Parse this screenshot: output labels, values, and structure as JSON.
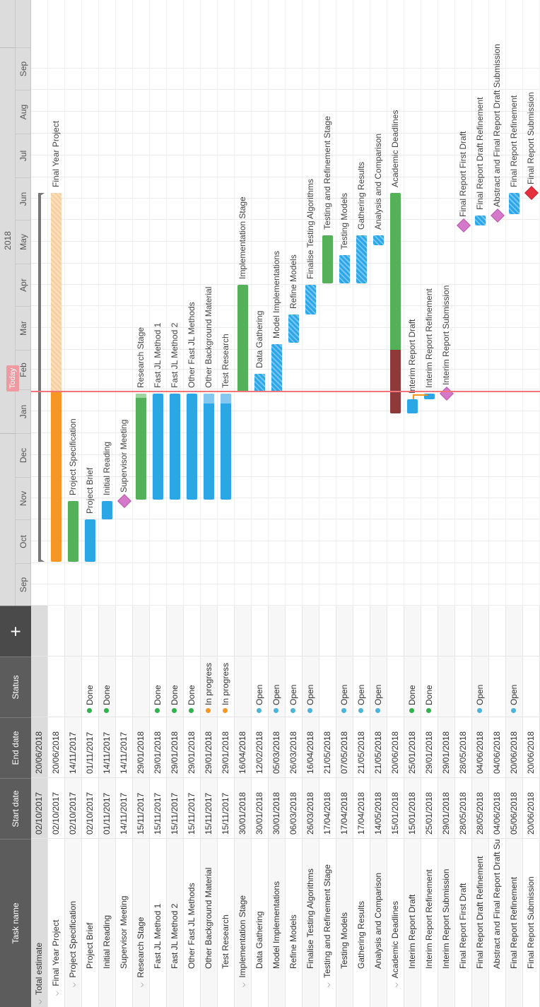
{
  "grid": {
    "headers": {
      "name": "Task name",
      "start": "Start date",
      "end": "End date",
      "status": "Status",
      "add": "+"
    },
    "rows": [
      {
        "name": "Total estimate",
        "start": "02/10/2017",
        "end": "20/06/2018",
        "status": "",
        "status_color": "",
        "level": 0,
        "expanded": true
      },
      {
        "name": "Final Year Project",
        "start": "02/10/2017",
        "end": "20/06/2018",
        "status": "",
        "status_color": "",
        "level": 1,
        "expanded": true
      },
      {
        "name": "Project Specification",
        "start": "02/10/2017",
        "end": "14/11/2017",
        "status": "",
        "status_color": "",
        "level": 2,
        "expanded": true
      },
      {
        "name": "Project Brief",
        "start": "02/10/2017",
        "end": "01/11/2017",
        "status": "Done",
        "status_color": "#2fb24a",
        "level": 3
      },
      {
        "name": "Initial Reading",
        "start": "01/11/2017",
        "end": "14/11/2017",
        "status": "Done",
        "status_color": "#2fb24a",
        "level": 3
      },
      {
        "name": "Supervisor Meeting",
        "start": "14/11/2017",
        "end": "14/11/2017",
        "status": "",
        "status_color": "",
        "level": 3
      },
      {
        "name": "Research Stage",
        "start": "15/11/2017",
        "end": "29/01/2018",
        "status": "",
        "status_color": "",
        "level": 2,
        "expanded": true
      },
      {
        "name": "Fast JL Method 1",
        "start": "15/11/2017",
        "end": "29/01/2018",
        "status": "Done",
        "status_color": "#2fb24a",
        "level": 3
      },
      {
        "name": "Fast JL Method 2",
        "start": "15/11/2017",
        "end": "29/01/2018",
        "status": "Done",
        "status_color": "#2fb24a",
        "level": 3
      },
      {
        "name": "Other Fast JL Methods",
        "start": "15/11/2017",
        "end": "29/01/2018",
        "status": "Done",
        "status_color": "#2fb24a",
        "level": 3
      },
      {
        "name": "Other Background Material",
        "start": "15/11/2017",
        "end": "29/01/2018",
        "status": "In progress",
        "status_color": "#f79622",
        "level": 3
      },
      {
        "name": "Test Research",
        "start": "15/11/2017",
        "end": "29/01/2018",
        "status": "In progress",
        "status_color": "#f79622",
        "level": 3
      },
      {
        "name": "Implementation Stage",
        "start": "30/01/2018",
        "end": "16/04/2018",
        "status": "",
        "status_color": "",
        "level": 2,
        "expanded": true
      },
      {
        "name": "Data Gathering",
        "start": "30/01/2018",
        "end": "12/02/2018",
        "status": "Open",
        "status_color": "#4ab5d9",
        "level": 3
      },
      {
        "name": "Model Implementations",
        "start": "30/01/2018",
        "end": "05/03/2018",
        "status": "Open",
        "status_color": "#4ab5d9",
        "level": 3
      },
      {
        "name": "Refine Models",
        "start": "06/03/2018",
        "end": "26/03/2018",
        "status": "Open",
        "status_color": "#4ab5d9",
        "level": 3
      },
      {
        "name": "Finalise Testing Algorithms",
        "start": "26/03/2018",
        "end": "16/04/2018",
        "status": "Open",
        "status_color": "#4ab5d9",
        "level": 3
      },
      {
        "name": "Testing and Refinement Stage",
        "start": "17/04/2018",
        "end": "21/05/2018",
        "status": "",
        "status_color": "",
        "level": 2,
        "expanded": true
      },
      {
        "name": "Testing Models",
        "start": "17/04/2018",
        "end": "07/05/2018",
        "status": "Open",
        "status_color": "#4ab5d9",
        "level": 3
      },
      {
        "name": "Gathering Results",
        "start": "17/04/2018",
        "end": "21/05/2018",
        "status": "Open",
        "status_color": "#4ab5d9",
        "level": 3
      },
      {
        "name": "Analysis and Comparison",
        "start": "14/05/2018",
        "end": "21/05/2018",
        "status": "Open",
        "status_color": "#4ab5d9",
        "level": 3
      },
      {
        "name": "Academic Deadlines",
        "start": "15/01/2018",
        "end": "20/06/2018",
        "status": "",
        "status_color": "",
        "level": 2,
        "expanded": true
      },
      {
        "name": "Interim Report Draft",
        "start": "15/01/2018",
        "end": "25/01/2018",
        "status": "Done",
        "status_color": "#2fb24a",
        "level": 3
      },
      {
        "name": "Interim Report Refinement",
        "start": "25/01/2018",
        "end": "29/01/2018",
        "status": "Done",
        "status_color": "#2fb24a",
        "level": 3
      },
      {
        "name": "Interim Report Submission",
        "start": "29/01/2018",
        "end": "29/01/2018",
        "status": "",
        "status_color": "",
        "level": 3
      },
      {
        "name": "Final Report First Draft",
        "start": "28/05/2018",
        "end": "28/05/2018",
        "status": "",
        "status_color": "",
        "level": 3
      },
      {
        "name": "Final Report Draft Refinement",
        "start": "28/05/2018",
        "end": "04/06/2018",
        "status": "Open",
        "status_color": "#4ab5d9",
        "level": 3
      },
      {
        "name": "Abstract and Final Report Draft Submission",
        "start": "04/06/2018",
        "end": "04/06/2018",
        "status": "",
        "status_color": "",
        "level": 3
      },
      {
        "name": "Final Report Refinement",
        "start": "05/06/2018",
        "end": "20/06/2018",
        "status": "Open",
        "status_color": "#4ab5d9",
        "level": 3
      },
      {
        "name": "Final Report Submission",
        "start": "20/06/2018",
        "end": "20/06/2018",
        "status": "",
        "status_color": "",
        "level": 3
      }
    ]
  },
  "timeline": {
    "year": "2018",
    "months": [
      "Sep",
      "Oct",
      "Nov",
      "Dec",
      "Jan",
      "Feb",
      "Mar",
      "Apr",
      "May",
      "Jun",
      "Jul",
      "Aug",
      "Sep"
    ],
    "today_label": "Today",
    "today_date": "2018-01-30",
    "colors": {
      "task": "#2ba7e8",
      "stage": "#55b05a",
      "project": "#f79622",
      "milestone": "#d678c9",
      "final_milestone": "#e53040",
      "today": "#f0747a"
    },
    "bars": [
      {
        "row": 1,
        "label": "Final Year Project",
        "start": "2017-10-02",
        "end": "2018-06-20",
        "kind": "project"
      },
      {
        "row": 2,
        "label": "Project Specification",
        "start": "2017-10-02",
        "end": "2017-11-14",
        "kind": "stage"
      },
      {
        "row": 3,
        "label": "Project Brief",
        "start": "2017-10-02",
        "end": "2017-11-01",
        "kind": "task"
      },
      {
        "row": 4,
        "label": "Initial Reading",
        "start": "2017-11-01",
        "end": "2017-11-14",
        "kind": "task"
      },
      {
        "row": 5,
        "label": "Supervisor Meeting",
        "start": "2017-11-14",
        "end": "2017-11-14",
        "kind": "milestone"
      },
      {
        "row": 6,
        "label": "Research Stage",
        "start": "2017-11-15",
        "end": "2018-01-29",
        "kind": "stage"
      },
      {
        "row": 7,
        "label": "Fast JL Method 1",
        "start": "2017-11-15",
        "end": "2018-01-29",
        "kind": "task"
      },
      {
        "row": 8,
        "label": "Fast JL Method 2",
        "start": "2017-11-15",
        "end": "2018-01-29",
        "kind": "task"
      },
      {
        "row": 9,
        "label": "Other Fast JL Methods",
        "start": "2017-11-15",
        "end": "2018-01-29",
        "kind": "task"
      },
      {
        "row": 10,
        "label": "Other Background Material",
        "start": "2017-11-15",
        "end": "2018-01-29",
        "kind": "task"
      },
      {
        "row": 11,
        "label": "Test Research",
        "start": "2017-11-15",
        "end": "2018-01-29",
        "kind": "task"
      },
      {
        "row": 12,
        "label": "Implementation Stage",
        "start": "2018-01-30",
        "end": "2018-04-16",
        "kind": "stage"
      },
      {
        "row": 13,
        "label": "Data Gathering",
        "start": "2018-01-30",
        "end": "2018-02-12",
        "kind": "task"
      },
      {
        "row": 14,
        "label": "Model Implementations",
        "start": "2018-01-30",
        "end": "2018-03-05",
        "kind": "task"
      },
      {
        "row": 15,
        "label": "Refine Models",
        "start": "2018-03-06",
        "end": "2018-03-26",
        "kind": "task"
      },
      {
        "row": 16,
        "label": "Finalise Testing Algorithms",
        "start": "2018-03-26",
        "end": "2018-04-16",
        "kind": "task"
      },
      {
        "row": 17,
        "label": "Testing and Refinement Stage",
        "start": "2018-04-17",
        "end": "2018-05-21",
        "kind": "stage"
      },
      {
        "row": 18,
        "label": "Testing Models",
        "start": "2018-04-17",
        "end": "2018-05-07",
        "kind": "task"
      },
      {
        "row": 19,
        "label": "Gathering Results",
        "start": "2018-04-17",
        "end": "2018-05-21",
        "kind": "task"
      },
      {
        "row": 20,
        "label": "Analysis and Comparison",
        "start": "2018-05-14",
        "end": "2018-05-21",
        "kind": "task"
      },
      {
        "row": 21,
        "label": "Academic Deadlines",
        "start": "2018-01-15",
        "end": "2018-06-20",
        "kind": "deadline"
      },
      {
        "row": 22,
        "label": "Interim Report Draft",
        "start": "2018-01-15",
        "end": "2018-01-25",
        "kind": "task"
      },
      {
        "row": 23,
        "label": "Interim Report Refinement",
        "start": "2018-01-25",
        "end": "2018-01-29",
        "kind": "task"
      },
      {
        "row": 24,
        "label": "Interim Report Submission",
        "start": "2018-01-29",
        "end": "2018-01-29",
        "kind": "milestone"
      },
      {
        "row": 25,
        "label": "Final Report First Draft",
        "start": "2018-05-28",
        "end": "2018-05-28",
        "kind": "milestone"
      },
      {
        "row": 26,
        "label": "Final Report Draft Refinement",
        "start": "2018-05-28",
        "end": "2018-06-04",
        "kind": "task"
      },
      {
        "row": 27,
        "label": "Abstract and Final Report Draft Submission",
        "start": "2018-06-04",
        "end": "2018-06-04",
        "kind": "milestone"
      },
      {
        "row": 28,
        "label": "Final Report Refinement",
        "start": "2018-06-05",
        "end": "2018-06-20",
        "kind": "task"
      },
      {
        "row": 29,
        "label": "Final Report Submission",
        "start": "2018-06-20",
        "end": "2018-06-20",
        "kind": "milestone_final"
      }
    ]
  }
}
